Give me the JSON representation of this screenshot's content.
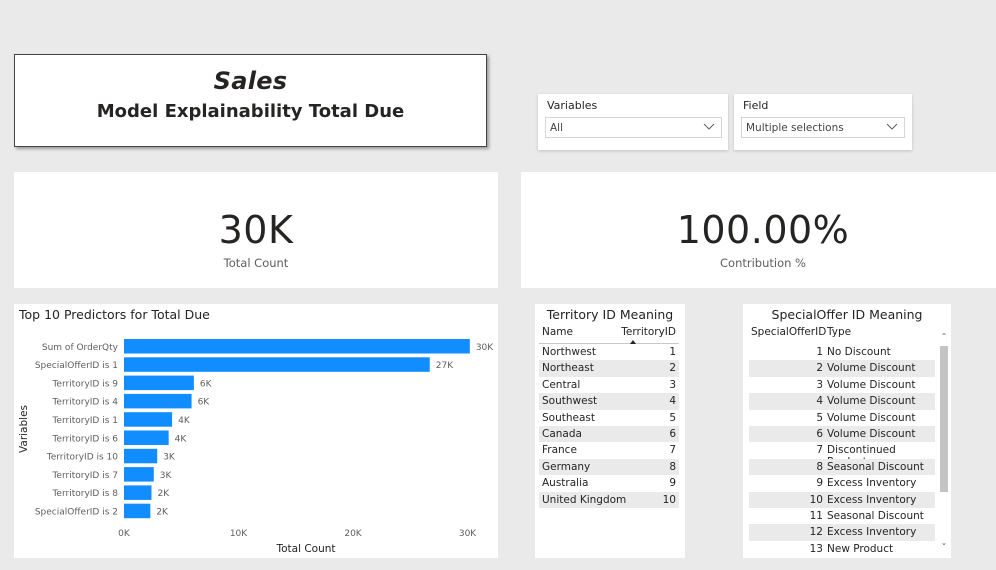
{
  "title": {
    "line1": "Sales",
    "line2": "Model Explainability Total Due"
  },
  "slicers": {
    "variables": {
      "label": "Variables",
      "value": "All"
    },
    "field": {
      "label": "Field",
      "value": "Multiple selections"
    }
  },
  "kpis": {
    "total_count": {
      "value": "30K",
      "caption": "Total  Count"
    },
    "contribution": {
      "value": "100.00%",
      "caption": "Contribution  %"
    }
  },
  "chart_data": {
    "type": "bar",
    "orientation": "horizontal",
    "title": "Top 10 Predictors for Total Due",
    "xlabel": "Total Count",
    "ylabel": "Variables",
    "categories": [
      "Sum of OrderQty",
      "SpecialOfferID is 1",
      "TerritoryID is 9",
      "TerritoryID is 4",
      "TerritoryID is 1",
      "TerritoryID is 6",
      "TerritoryID is 10",
      "TerritoryID is 7",
      "TerritoryID is 8",
      "SpecialOfferID is 2"
    ],
    "values": [
      30200,
      26700,
      6100,
      5900,
      4200,
      3900,
      2900,
      2600,
      2400,
      2300
    ],
    "data_labels": [
      "30K",
      "27K",
      "6K",
      "6K",
      "4K",
      "4K",
      "3K",
      "3K",
      "2K",
      "2K"
    ],
    "x_ticks": [
      "0K",
      "10K",
      "20K",
      "30K"
    ],
    "x_tick_values": [
      0,
      10000,
      20000,
      30000
    ],
    "xlim": [
      0,
      31000
    ],
    "bar_color": "#118dff",
    "grid": false
  },
  "territory_table": {
    "title": "Territory ID Meaning",
    "columns": [
      "Name",
      "TerritoryID"
    ],
    "rows": [
      [
        "Northwest",
        "1"
      ],
      [
        "Northeast",
        "2"
      ],
      [
        "Central",
        "3"
      ],
      [
        "Southwest",
        "4"
      ],
      [
        "Southeast",
        "5"
      ],
      [
        "Canada",
        "6"
      ],
      [
        "France",
        "7"
      ],
      [
        "Germany",
        "8"
      ],
      [
        "Australia",
        "9"
      ],
      [
        "United Kingdom",
        "10"
      ]
    ]
  },
  "special_offer_table": {
    "title": "SpecialOffer ID Meaning",
    "columns": [
      "SpecialOfferID",
      "Type"
    ],
    "rows": [
      [
        "1",
        "No Discount"
      ],
      [
        "2",
        "Volume Discount"
      ],
      [
        "3",
        "Volume Discount"
      ],
      [
        "4",
        "Volume Discount"
      ],
      [
        "5",
        "Volume Discount"
      ],
      [
        "6",
        "Volume Discount"
      ],
      [
        "7",
        "Discontinued Product"
      ],
      [
        "8",
        "Seasonal Discount"
      ],
      [
        "9",
        "Excess Inventory"
      ],
      [
        "10",
        "Excess Inventory"
      ],
      [
        "11",
        "Seasonal Discount"
      ],
      [
        "12",
        "Excess Inventory"
      ],
      [
        "13",
        "New Product"
      ]
    ]
  }
}
